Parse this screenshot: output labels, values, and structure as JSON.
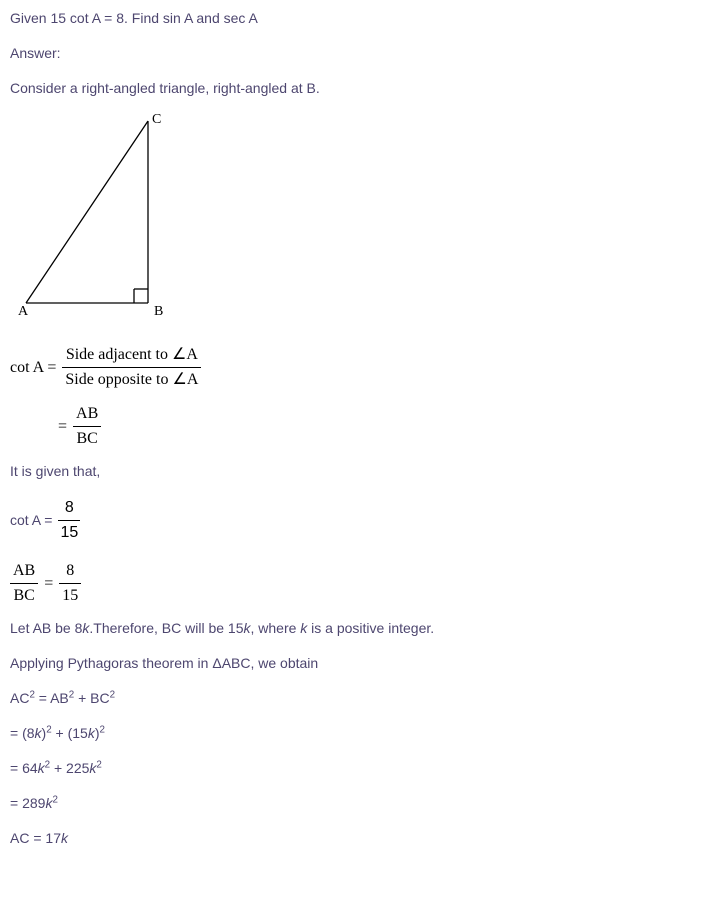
{
  "question": "Given 15 cot A = 8. Find sin A and sec A",
  "answer_label": "Answer:",
  "setup": "Consider a right-angled triangle, right-angled at B.",
  "triangle": {
    "labels": {
      "A": "A",
      "B": "B",
      "C": "C"
    },
    "points": {
      "A": [
        8,
        190
      ],
      "B": [
        130,
        190
      ],
      "C": [
        130,
        8
      ]
    },
    "right_angle_size": 14,
    "stroke": "#000000",
    "stroke_width": 1.3
  },
  "cot_def": {
    "lhs": "cot A =",
    "num1": "Side adjacent to ∠A",
    "den1": "Side opposite to ∠A",
    "num2": "AB",
    "den2": "BC",
    "eq_prefix": "="
  },
  "given_text": "It is given that,",
  "cot_value": {
    "lhs": "cot A =",
    "num": "8",
    "den": "15"
  },
  "ratio": {
    "lhs_num": "AB",
    "lhs_den": "BC",
    "eq": "=",
    "rhs_num": "8",
    "rhs_den": "15"
  },
  "let_text_1": "Let AB be 8",
  "let_text_k1": "k",
  "let_text_2": ".Therefore, BC will be 15",
  "let_text_k2": "k",
  "let_text_3": ", where ",
  "let_text_k3": "k",
  "let_text_4": " is a positive integer.",
  "pyth_text": "Applying Pythagoras theorem in ΔABC, we obtain",
  "eq1_lhs": "AC",
  "eq1_sup": "2",
  "eq1_mid": " = AB",
  "eq1_sup2": "2",
  "eq1_mid2": " + BC",
  "eq1_sup3": "2",
  "eq2_pre": "= (8",
  "eq2_k": "k",
  "eq2_mid": ")",
  "eq2_sup": "2",
  "eq2_mid2": " + (15",
  "eq2_k2": "k",
  "eq2_end": ")",
  "eq2_sup2": "2",
  "eq3_pre": "= 64",
  "eq3_k": "k",
  "eq3_sup": "2",
  "eq3_mid": " + 225",
  "eq3_k2": "k",
  "eq3_sup2": "2",
  "eq4_pre": "= 289",
  "eq4_k": "k",
  "eq4_sup": "2",
  "eq5_lhs": "AC = 17",
  "eq5_k": "k"
}
